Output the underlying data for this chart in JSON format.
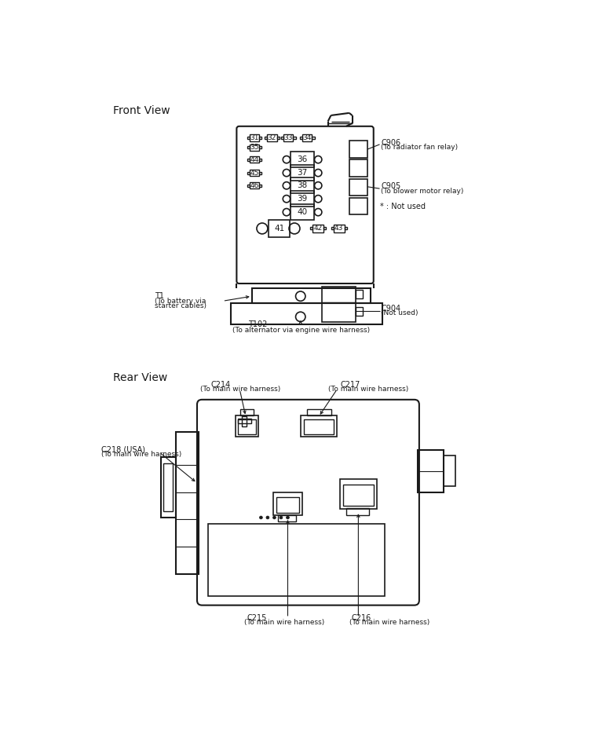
{
  "bg_color": "#ffffff",
  "line_color": "#1a1a1a",
  "title_front": "Front View",
  "title_rear": "Rear View",
  "C906_line1": "C906",
  "C906_line2": "(To radiator fan relay)",
  "C905_line1": "C905",
  "C905_line2": "(To blower motor relay)",
  "C904_line1": "C904",
  "C904_line2": "(Not used)",
  "not_used": "* : Not used",
  "T1_line1": "T1",
  "T1_line2": "(To battery via",
  "T1_line3": "starter cables)",
  "T102_line1": "T102",
  "T102_line2": "(To alternator via engine wire harness)",
  "C214_line1": "C214",
  "C214_line2": "(To main wire harness)",
  "C217_line1": "C217",
  "C217_line2": "(To main wire harness)",
  "C218_line1": "C218 (USA)",
  "C218_line2": "(To main wire harness)",
  "C215_line1": "C215",
  "C215_line2": "(To main wire harness)",
  "C216_line1": "C216",
  "C216_line2": "(To main wire harness)",
  "font_title": 10,
  "font_label": 7,
  "font_fuse": 7
}
